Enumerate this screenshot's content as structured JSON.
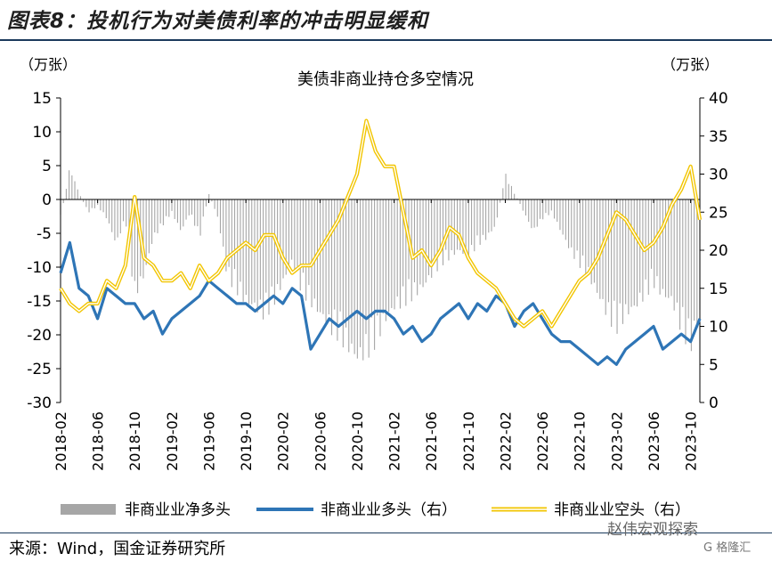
{
  "header": {
    "figure_title": "图表8：投机行为对美债利率的冲击明显缓和",
    "source": "来源：Wind，国金证券研究所",
    "watermark": "赵伟宏观探索",
    "watermark2": "G 格隆汇"
  },
  "colors": {
    "net": "#a6a6a6",
    "long": "#2e75b6",
    "short": "#f2c500",
    "axis": "#000000"
  },
  "chart_data": {
    "type": "line",
    "title": "美债非商业持仓多空情况",
    "left_unit": "（万张）",
    "right_unit": "（万张）",
    "left_ylim": [
      -30,
      15
    ],
    "left_ticks": [
      15,
      10,
      5,
      0,
      -5,
      -10,
      -15,
      -20,
      -25,
      -30
    ],
    "right_ylim": [
      0,
      40
    ],
    "right_ticks": [
      40,
      35,
      30,
      25,
      20,
      15,
      10,
      5,
      0
    ],
    "x_range": [
      "2018-02",
      "2023-11"
    ],
    "x_ticks": [
      "2018-02",
      "2018-06",
      "2018-10",
      "2019-02",
      "2019-06",
      "2019-10",
      "2020-02",
      "2020-06",
      "2020-10",
      "2021-02",
      "2021-06",
      "2021-10",
      "2022-02",
      "2022-06",
      "2022-10",
      "2023-02",
      "2023-06",
      "2023-10"
    ],
    "legend": [
      "非商业业净多头",
      "非商业业多头（右）",
      "非商业业空头（右）"
    ],
    "series": [
      {
        "name": "非商业净多头",
        "axis": "left",
        "style": "bar",
        "points": [
          [
            "2018-02",
            -3
          ],
          [
            "2018-03",
            5
          ],
          [
            "2018-04",
            1
          ],
          [
            "2018-05",
            -2
          ],
          [
            "2018-06",
            -1
          ],
          [
            "2018-07",
            -3
          ],
          [
            "2018-08",
            -7
          ],
          [
            "2018-09",
            -3
          ],
          [
            "2018-10",
            -15
          ],
          [
            "2018-11",
            -12
          ],
          [
            "2018-12",
            -6
          ],
          [
            "2019-01",
            -4
          ],
          [
            "2019-02",
            -2
          ],
          [
            "2019-03",
            -5
          ],
          [
            "2019-04",
            -2
          ],
          [
            "2019-05",
            -6
          ],
          [
            "2019-06",
            1
          ],
          [
            "2019-07",
            -3
          ],
          [
            "2019-08",
            -12
          ],
          [
            "2019-09",
            -14
          ],
          [
            "2019-10",
            -16
          ],
          [
            "2019-11",
            -17
          ],
          [
            "2019-12",
            -18
          ],
          [
            "2020-01",
            -16
          ],
          [
            "2020-02",
            -13
          ],
          [
            "2020-03",
            -10
          ],
          [
            "2020-04",
            -14
          ],
          [
            "2020-05",
            -16
          ],
          [
            "2020-06",
            -18
          ],
          [
            "2020-07",
            -20
          ],
          [
            "2020-08",
            -21
          ],
          [
            "2020-09",
            -23
          ],
          [
            "2020-10",
            -25
          ],
          [
            "2020-11",
            -24
          ],
          [
            "2020-12",
            -22
          ],
          [
            "2021-01",
            -19
          ],
          [
            "2021-02",
            -17
          ],
          [
            "2021-03",
            -16
          ],
          [
            "2021-04",
            -15
          ],
          [
            "2021-05",
            -14
          ],
          [
            "2021-06",
            -12
          ],
          [
            "2021-07",
            -10
          ],
          [
            "2021-08",
            -9
          ],
          [
            "2021-09",
            -8
          ],
          [
            "2021-10",
            -9
          ],
          [
            "2021-11",
            -7
          ],
          [
            "2021-12",
            -6
          ],
          [
            "2022-01",
            -4
          ],
          [
            "2022-02",
            4
          ],
          [
            "2022-03",
            1
          ],
          [
            "2022-04",
            -2
          ],
          [
            "2022-05",
            -5
          ],
          [
            "2022-06",
            -3
          ],
          [
            "2022-07",
            -2
          ],
          [
            "2022-08",
            -5
          ],
          [
            "2022-09",
            -8
          ],
          [
            "2022-10",
            -10
          ],
          [
            "2022-11",
            -12
          ],
          [
            "2022-12",
            -15
          ],
          [
            "2023-01",
            -18
          ],
          [
            "2023-02",
            -20
          ],
          [
            "2023-03",
            -18
          ],
          [
            "2023-04",
            -17
          ],
          [
            "2023-05",
            -15
          ],
          [
            "2023-06",
            -13
          ],
          [
            "2023-07",
            -15
          ],
          [
            "2023-08",
            -16
          ],
          [
            "2023-09",
            -20
          ],
          [
            "2023-10",
            -23
          ],
          [
            "2023-11",
            -18
          ]
        ]
      },
      {
        "name": "非商业多头",
        "axis": "right",
        "style": "line",
        "points": [
          [
            "2018-02",
            17
          ],
          [
            "2018-03",
            21
          ],
          [
            "2018-04",
            15
          ],
          [
            "2018-05",
            14
          ],
          [
            "2018-06",
            11
          ],
          [
            "2018-07",
            15
          ],
          [
            "2018-08",
            14
          ],
          [
            "2018-09",
            13
          ],
          [
            "2018-10",
            13
          ],
          [
            "2018-11",
            11
          ],
          [
            "2018-12",
            12
          ],
          [
            "2019-01",
            9
          ],
          [
            "2019-02",
            11
          ],
          [
            "2019-03",
            12
          ],
          [
            "2019-04",
            13
          ],
          [
            "2019-05",
            14
          ],
          [
            "2019-06",
            16
          ],
          [
            "2019-07",
            15
          ],
          [
            "2019-08",
            14
          ],
          [
            "2019-09",
            13
          ],
          [
            "2019-10",
            13
          ],
          [
            "2019-11",
            12
          ],
          [
            "2019-12",
            13
          ],
          [
            "2020-01",
            14
          ],
          [
            "2020-02",
            13
          ],
          [
            "2020-03",
            15
          ],
          [
            "2020-04",
            14
          ],
          [
            "2020-05",
            7
          ],
          [
            "2020-06",
            9
          ],
          [
            "2020-07",
            11
          ],
          [
            "2020-08",
            10
          ],
          [
            "2020-09",
            11
          ],
          [
            "2020-10",
            12
          ],
          [
            "2020-11",
            11
          ],
          [
            "2020-12",
            12
          ],
          [
            "2021-01",
            12
          ],
          [
            "2021-02",
            11
          ],
          [
            "2021-03",
            9
          ],
          [
            "2021-04",
            10
          ],
          [
            "2021-05",
            8
          ],
          [
            "2021-06",
            9
          ],
          [
            "2021-07",
            11
          ],
          [
            "2021-08",
            12
          ],
          [
            "2021-09",
            13
          ],
          [
            "2021-10",
            11
          ],
          [
            "2021-11",
            13
          ],
          [
            "2021-12",
            12
          ],
          [
            "2022-01",
            14
          ],
          [
            "2022-02",
            13
          ],
          [
            "2022-03",
            10
          ],
          [
            "2022-04",
            12
          ],
          [
            "2022-05",
            13
          ],
          [
            "2022-06",
            11
          ],
          [
            "2022-07",
            9
          ],
          [
            "2022-08",
            8
          ],
          [
            "2022-09",
            8
          ],
          [
            "2022-10",
            7
          ],
          [
            "2022-11",
            6
          ],
          [
            "2022-12",
            5
          ],
          [
            "2023-01",
            6
          ],
          [
            "2023-02",
            5
          ],
          [
            "2023-03",
            7
          ],
          [
            "2023-04",
            8
          ],
          [
            "2023-05",
            9
          ],
          [
            "2023-06",
            10
          ],
          [
            "2023-07",
            7
          ],
          [
            "2023-08",
            8
          ],
          [
            "2023-09",
            9
          ],
          [
            "2023-10",
            8
          ],
          [
            "2023-11",
            11
          ]
        ]
      },
      {
        "name": "非商业空头",
        "axis": "right",
        "style": "line",
        "points": [
          [
            "2018-02",
            15
          ],
          [
            "2018-03",
            13
          ],
          [
            "2018-04",
            12
          ],
          [
            "2018-05",
            13
          ],
          [
            "2018-06",
            13
          ],
          [
            "2018-07",
            16
          ],
          [
            "2018-08",
            15
          ],
          [
            "2018-09",
            18
          ],
          [
            "2018-10",
            27
          ],
          [
            "2018-11",
            19
          ],
          [
            "2018-12",
            18
          ],
          [
            "2019-01",
            16
          ],
          [
            "2019-02",
            16
          ],
          [
            "2019-03",
            17
          ],
          [
            "2019-04",
            15
          ],
          [
            "2019-05",
            18
          ],
          [
            "2019-06",
            16
          ],
          [
            "2019-07",
            17
          ],
          [
            "2019-08",
            19
          ],
          [
            "2019-09",
            20
          ],
          [
            "2019-10",
            21
          ],
          [
            "2019-11",
            20
          ],
          [
            "2019-12",
            22
          ],
          [
            "2020-01",
            22
          ],
          [
            "2020-02",
            19
          ],
          [
            "2020-03",
            17
          ],
          [
            "2020-04",
            18
          ],
          [
            "2020-05",
            18
          ],
          [
            "2020-06",
            20
          ],
          [
            "2020-07",
            22
          ],
          [
            "2020-08",
            24
          ],
          [
            "2020-09",
            27
          ],
          [
            "2020-10",
            30
          ],
          [
            "2020-11",
            37
          ],
          [
            "2020-12",
            33
          ],
          [
            "2021-01",
            31
          ],
          [
            "2021-02",
            31
          ],
          [
            "2021-03",
            25
          ],
          [
            "2021-04",
            19
          ],
          [
            "2021-05",
            20
          ],
          [
            "2021-06",
            18
          ],
          [
            "2021-07",
            20
          ],
          [
            "2021-08",
            23
          ],
          [
            "2021-09",
            22
          ],
          [
            "2021-10",
            19
          ],
          [
            "2021-11",
            17
          ],
          [
            "2021-12",
            16
          ],
          [
            "2022-01",
            15
          ],
          [
            "2022-02",
            13
          ],
          [
            "2022-03",
            11
          ],
          [
            "2022-04",
            10
          ],
          [
            "2022-05",
            11
          ],
          [
            "2022-06",
            12
          ],
          [
            "2022-07",
            10
          ],
          [
            "2022-08",
            12
          ],
          [
            "2022-09",
            14
          ],
          [
            "2022-10",
            16
          ],
          [
            "2022-11",
            17
          ],
          [
            "2022-12",
            19
          ],
          [
            "2023-01",
            22
          ],
          [
            "2023-02",
            25
          ],
          [
            "2023-03",
            24
          ],
          [
            "2023-04",
            22
          ],
          [
            "2023-05",
            20
          ],
          [
            "2023-06",
            21
          ],
          [
            "2023-07",
            23
          ],
          [
            "2023-08",
            26
          ],
          [
            "2023-09",
            28
          ],
          [
            "2023-10",
            31
          ],
          [
            "2023-11",
            24
          ]
        ]
      }
    ]
  }
}
